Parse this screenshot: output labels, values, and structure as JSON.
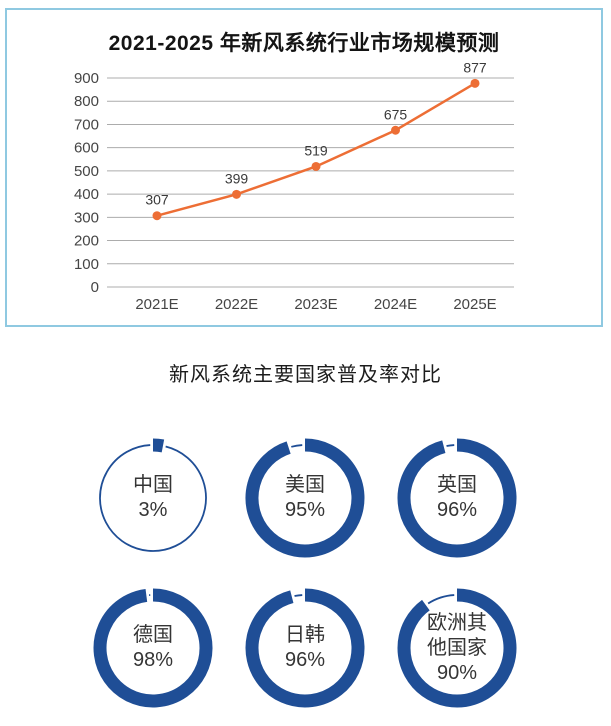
{
  "colors": {
    "panel_border": "#8FC9E1",
    "line_accent": "#ED6E35",
    "ring_blue": "#1F4E96",
    "grid_gray": "#ACACAC",
    "axis_text": "#454545",
    "label_text": "#3A3A3A"
  },
  "chart_data": [
    {
      "type": "line",
      "title": "2021-2025 年新风系统行业市场规模预测",
      "categories": [
        "2021E",
        "2022E",
        "2023E",
        "2024E",
        "2025E"
      ],
      "values": [
        307,
        399,
        519,
        675,
        877
      ],
      "data_labels": [
        "307",
        "399",
        "519",
        "675",
        "877"
      ],
      "xlabel": "",
      "ylabel": "",
      "ylim": [
        0,
        900
      ],
      "yticks": [
        0,
        100,
        200,
        300,
        400,
        500,
        600,
        700,
        800,
        900
      ],
      "grid": true,
      "legend": "none",
      "line_color": "#ED6E35",
      "marker": "circle"
    },
    {
      "type": "pie",
      "subtype": "donut-set",
      "title": "新风系统主要国家普及率对比",
      "ring_color": "#1F4E96",
      "items": [
        {
          "name": "中国",
          "name_lines": [
            "中国"
          ],
          "value": 3,
          "value_label": "3%"
        },
        {
          "name": "美国",
          "name_lines": [
            "美国"
          ],
          "value": 95,
          "value_label": "95%"
        },
        {
          "name": "英国",
          "name_lines": [
            "英国"
          ],
          "value": 96,
          "value_label": "96%"
        },
        {
          "name": "德国",
          "name_lines": [
            "德国"
          ],
          "value": 98,
          "value_label": "98%"
        },
        {
          "name": "日韩",
          "name_lines": [
            "日韩"
          ],
          "value": 96,
          "value_label": "96%"
        },
        {
          "name": "欧洲其他国家",
          "name_lines": [
            "欧洲其",
            "他国家"
          ],
          "value": 90,
          "value_label": "90%"
        }
      ]
    }
  ]
}
